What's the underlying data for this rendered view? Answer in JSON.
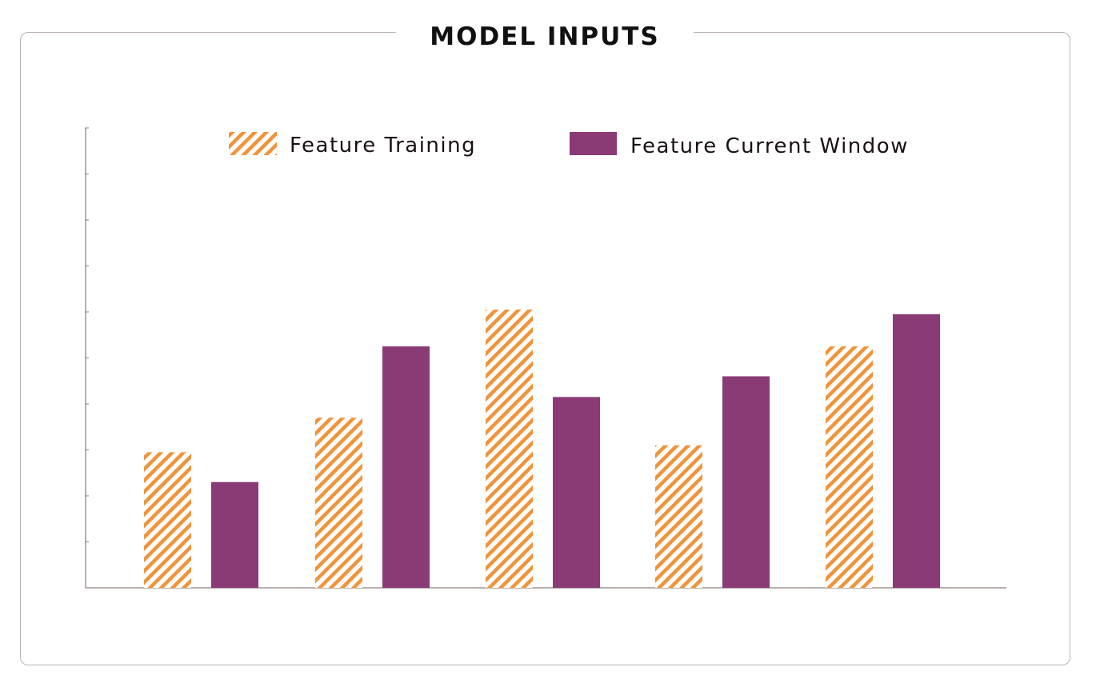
{
  "title": "MODEL INPUTS",
  "colors": {
    "training": "#f0933a",
    "current": "#8a3a74",
    "axis": "#a09690"
  },
  "chart_data": {
    "type": "bar",
    "title": "MODEL INPUTS",
    "xlabel": "",
    "ylabel": "",
    "categories": [
      "",
      "",
      "",
      "",
      ""
    ],
    "ylim": [
      0,
      10
    ],
    "grid": false,
    "legend_position": "top",
    "series": [
      {
        "name": "Feature Training",
        "pattern": "diagonal-hatch",
        "values": [
          2.95,
          3.7,
          6.05,
          3.1,
          5.25
        ]
      },
      {
        "name": "Feature Current Window",
        "pattern": "solid",
        "values": [
          2.3,
          5.25,
          4.15,
          4.6,
          5.95
        ]
      }
    ]
  }
}
